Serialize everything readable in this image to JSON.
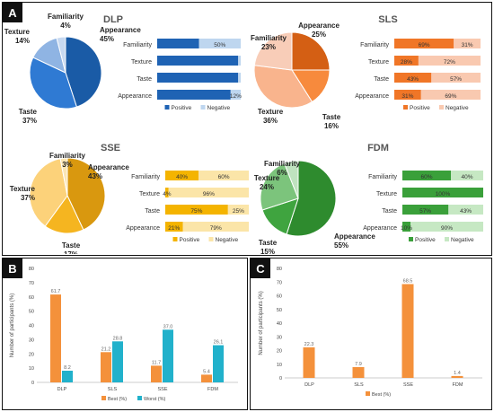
{
  "panel_labels": {
    "a": "A",
    "b": "B",
    "c": "C"
  },
  "colors": {
    "dlp": [
      "#1a5ba6",
      "#2f7ad3",
      "#8fb4e3",
      "#c7d9f1"
    ],
    "dlp_pos": "#1f63b4",
    "dlp_neg": "#bed6ef",
    "sls": [
      "#d45f14",
      "#f78a3d",
      "#f9b48d",
      "#f8cdb8"
    ],
    "sls_pos": "#f07627",
    "sls_neg": "#f9c9b0",
    "sse": [
      "#d9980f",
      "#f5b520",
      "#fcd27a",
      "#fbe6b4"
    ],
    "sse_pos": "#f4b400",
    "sse_neg": "#fbe5a8",
    "fdm": [
      "#2e8b2e",
      "#3fa43f",
      "#7cc47c",
      "#bfe3bf"
    ],
    "fdm_pos": "#3aa03a",
    "fdm_neg": "#c6e8c3",
    "best": "#f4913b",
    "worst": "#21b1cb"
  },
  "chart_data": [
    {
      "type": "pie",
      "title": "DLP",
      "slices": [
        {
          "label": "Appearance",
          "value": 45,
          "text": "45%"
        },
        {
          "label": "Taste",
          "value": 37,
          "text": "37%"
        },
        {
          "label": "Texture",
          "value": 14,
          "text": "14%"
        },
        {
          "label": "Familiarity",
          "value": 4,
          "text": "4%"
        }
      ]
    },
    {
      "type": "bar",
      "stacked": true,
      "orientation": "horizontal",
      "categories": [
        "Familiarity",
        "Texture",
        "Taste",
        "Appearance"
      ],
      "series": [
        {
          "name": "Positive",
          "values": [
            50,
            97,
            97,
            88
          ]
        },
        {
          "name": "Negative",
          "values": [
            50,
            3,
            3,
            12
          ]
        }
      ],
      "labels": {
        "pos": [
          "",
          "",
          "",
          ""
        ],
        "neg": [
          "50%",
          "",
          "",
          "12%"
        ]
      },
      "legend": [
        "Positive",
        "Negative"
      ]
    },
    {
      "type": "pie",
      "title": "SLS",
      "slices": [
        {
          "label": "Appearance",
          "value": 25,
          "text": "25%"
        },
        {
          "label": "Taste",
          "value": 16,
          "text": "16%"
        },
        {
          "label": "Texture",
          "value": 36,
          "text": "36%"
        },
        {
          "label": "Familiarity",
          "value": 23,
          "text": "23%"
        }
      ]
    },
    {
      "type": "bar",
      "stacked": true,
      "orientation": "horizontal",
      "categories": [
        "Familiarity",
        "Texture",
        "Taste",
        "Appearance"
      ],
      "series": [
        {
          "name": "Positive",
          "values": [
            69,
            28,
            43,
            31
          ]
        },
        {
          "name": "Negative",
          "values": [
            31,
            72,
            57,
            69
          ]
        }
      ],
      "labels": {
        "pos": [
          "69%",
          "28%",
          "43%",
          "31%"
        ],
        "neg": [
          "31%",
          "72%",
          "57%",
          "69%"
        ]
      },
      "legend": [
        "Positive",
        "Negative"
      ]
    },
    {
      "type": "pie",
      "title": "SSE",
      "slices": [
        {
          "label": "Appearance",
          "value": 43,
          "text": "43%"
        },
        {
          "label": "Taste",
          "value": 17,
          "text": "17%"
        },
        {
          "label": "Texture",
          "value": 37,
          "text": "37%"
        },
        {
          "label": "Familiarity",
          "value": 3,
          "text": "3%"
        }
      ]
    },
    {
      "type": "bar",
      "stacked": true,
      "orientation": "horizontal",
      "categories": [
        "Familiarity",
        "Texture",
        "Taste",
        "Appearance"
      ],
      "series": [
        {
          "name": "Positive",
          "values": [
            40,
            4,
            75,
            21
          ]
        },
        {
          "name": "Negative",
          "values": [
            60,
            96,
            25,
            79
          ]
        }
      ],
      "labels": {
        "pos": [
          "40%",
          "4%",
          "75%",
          "21%"
        ],
        "neg": [
          "60%",
          "96%",
          "25%",
          "79%"
        ]
      },
      "legend": [
        "Positive",
        "Negative"
      ]
    },
    {
      "type": "pie",
      "title": "FDM",
      "slices": [
        {
          "label": "Appearance",
          "value": 55,
          "text": "55%"
        },
        {
          "label": "Taste",
          "value": 15,
          "text": "15%"
        },
        {
          "label": "Texture",
          "value": 24,
          "text": "24%"
        },
        {
          "label": "Familiarity",
          "value": 6,
          "text": "6%"
        }
      ]
    },
    {
      "type": "bar",
      "stacked": true,
      "orientation": "horizontal",
      "categories": [
        "Familiarity",
        "Texture",
        "Taste",
        "Appearance"
      ],
      "series": [
        {
          "name": "Positive",
          "values": [
            60,
            100,
            57,
            10
          ]
        },
        {
          "name": "Negative",
          "values": [
            40,
            0,
            43,
            90
          ]
        }
      ],
      "labels": {
        "pos": [
          "60%",
          "100%",
          "57%",
          "10%"
        ],
        "neg": [
          "40%",
          "",
          "43%",
          "90%"
        ]
      },
      "legend": [
        "Positive",
        "Negative"
      ]
    },
    {
      "type": "bar",
      "categories": [
        "DLP",
        "SLS",
        "SSE",
        "FDM"
      ],
      "series": [
        {
          "name": "Best (%)",
          "values": [
            61.7,
            21.2,
            11.7,
            5.4
          ]
        },
        {
          "name": "Worst (%)",
          "values": [
            8.2,
            28.8,
            37.0,
            26.1
          ]
        }
      ],
      "ylabel": "Number of participants (%)",
      "ylim": [
        0,
        80
      ],
      "yticks": [
        0,
        10,
        20,
        30,
        40,
        50,
        60,
        70,
        80
      ],
      "legend": [
        "Best (%)",
        "Worst (%)"
      ]
    },
    {
      "type": "bar",
      "categories": [
        "DLP",
        "SLS",
        "SSE",
        "FDM"
      ],
      "series": [
        {
          "name": "Best (%)",
          "values": [
            22.3,
            7.9,
            68.5,
            1.4
          ]
        }
      ],
      "ylabel": "Number of participants (%)",
      "ylim": [
        0,
        80
      ],
      "yticks": [
        0,
        10,
        20,
        30,
        40,
        50,
        60,
        70,
        80
      ],
      "legend": [
        "Best (%)"
      ]
    }
  ]
}
